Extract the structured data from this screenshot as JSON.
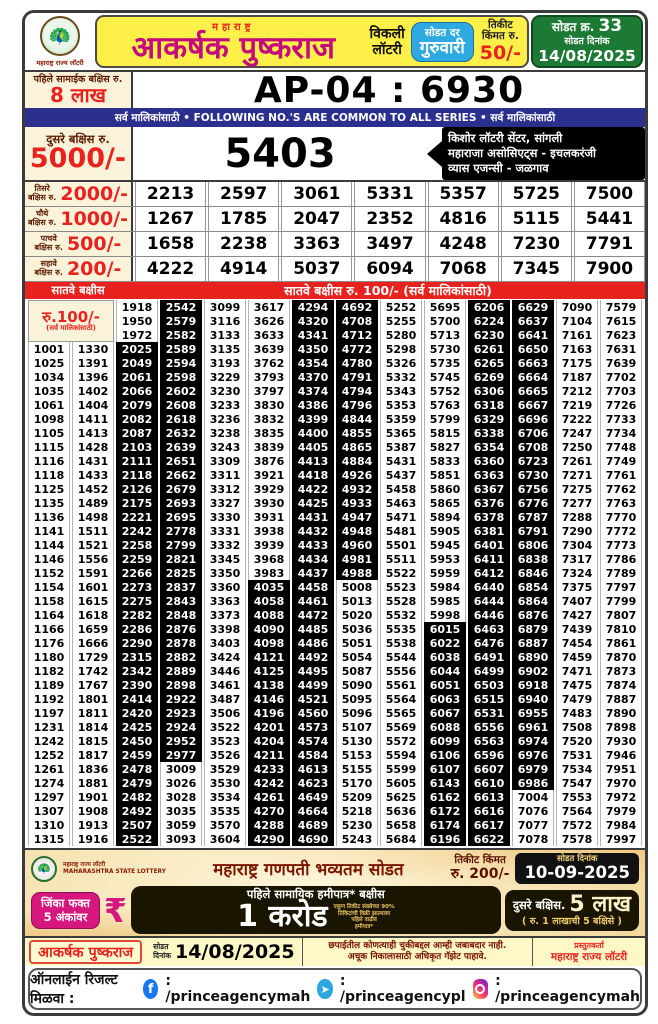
{
  "header": {
    "logo_caption": "महाराष्ट्र राज्य लॉटरी",
    "title_small": "महाराष्ट्र",
    "title": "आकर्षक पुष्कराज",
    "weekly_line1": "विकली",
    "weekly_line2": "लॉटरी",
    "draw_day_label": "सोडत दर",
    "draw_day": "गुरुवारी",
    "ticket_price_label_line1": "तिकीट",
    "ticket_price_label_line2": "किंमत रु.",
    "ticket_price": "50/-",
    "draw_no_label": "सोडत क्र.",
    "draw_no": "33",
    "draw_date_label": "सोडत दिनांक",
    "draw_date": "14/08/2025"
  },
  "first_prize": {
    "label": "पहिले सामाईक बक्षिस रु.",
    "amount": "8 लाख",
    "number": "AP-04 : 6930"
  },
  "common_bar": "सर्व मालिकांसाठी  •  FOLLOWING NO.'S ARE COMMON TO ALL SERIES  •  सर्व मालिकांसाठी",
  "second_prize": {
    "label": "दुसरे बक्षिस रु.",
    "amount": "5000/-",
    "number": "5403",
    "agents": [
      "किशोर लॉटरी सेंटर, सांगली",
      "महाराजा असोसिएट्स - इचलकरंजी",
      "व्यास एजन्सी - जळगाव"
    ]
  },
  "prize_rows": [
    {
      "label_line1": "तिसरे",
      "label_line2": "बक्षिस रु.",
      "amount": "2000/-",
      "numbers": [
        2213,
        2597,
        3061,
        5331,
        5357,
        5725,
        7500
      ]
    },
    {
      "label_line1": "चौथे",
      "label_line2": "बक्षिस रु.",
      "amount": "1000/-",
      "numbers": [
        1267,
        1785,
        2047,
        2352,
        4816,
        5115,
        5441
      ]
    },
    {
      "label_line1": "पाचवे",
      "label_line2": "बक्षिस रु.",
      "amount": "500/-",
      "numbers": [
        1658,
        2238,
        3363,
        3497,
        4248,
        7230,
        7791
      ]
    },
    {
      "label_line1": "सहावे",
      "label_line2": "बक्षिस रु.",
      "amount": "200/-",
      "numbers": [
        4222,
        4914,
        5037,
        6094,
        7068,
        7345,
        7900
      ]
    }
  ],
  "seventh": {
    "bar_left": "सातवे बक्षीस",
    "bar_center": "सातवे बक्षीस रु. 100/-  (सर्व मालिकांसाठी)",
    "label_amount": "रु.100/-",
    "label_note": "(सर्व मालिकांसाठी)",
    "head_rows": [
      [
        1918,
        2542,
        3099,
        3617,
        4294,
        4692,
        5252,
        5695,
        6206,
        6629,
        7090,
        7579
      ],
      [
        1950,
        2579,
        3116,
        3626,
        4320,
        4708,
        5255,
        5700,
        6224,
        6637,
        7104,
        7615
      ],
      [
        1972,
        2582,
        3133,
        3633,
        4341,
        4712,
        5280,
        5713,
        6230,
        6641,
        7161,
        7623
      ]
    ],
    "body_rows": [
      [
        1001,
        1330,
        2025,
        2589,
        3135,
        3639,
        4350,
        4772,
        5298,
        5730,
        6261,
        6650,
        7163,
        7631
      ],
      [
        1025,
        1391,
        2049,
        2594,
        3193,
        3762,
        4354,
        4780,
        5326,
        5735,
        6265,
        6663,
        7175,
        7639
      ],
      [
        1034,
        1396,
        2061,
        2598,
        3229,
        3793,
        4370,
        4791,
        5332,
        5745,
        6269,
        6664,
        7187,
        7702
      ],
      [
        1035,
        1402,
        2066,
        2602,
        3230,
        3797,
        4374,
        4794,
        5343,
        5752,
        6306,
        6665,
        7212,
        7703
      ],
      [
        1061,
        1404,
        2079,
        2608,
        3233,
        3830,
        4386,
        4796,
        5353,
        5763,
        6318,
        6667,
        7219,
        7726
      ],
      [
        1098,
        1411,
        2082,
        2618,
        3236,
        3832,
        4399,
        4844,
        5359,
        5799,
        6329,
        6696,
        7222,
        7733
      ],
      [
        1105,
        1413,
        2087,
        2632,
        3238,
        3835,
        4400,
        4855,
        5365,
        5815,
        6338,
        6706,
        7247,
        7734
      ],
      [
        1115,
        1428,
        2103,
        2639,
        3243,
        3839,
        4405,
        4865,
        5387,
        5827,
        6354,
        6708,
        7250,
        7748
      ],
      [
        1116,
        1431,
        2111,
        2651,
        3309,
        3876,
        4413,
        4884,
        5431,
        5833,
        6360,
        6723,
        7261,
        7749
      ],
      [
        1118,
        1433,
        2118,
        2662,
        3311,
        3921,
        4418,
        4926,
        5437,
        5851,
        6363,
        6730,
        7271,
        7761
      ],
      [
        1125,
        1452,
        2126,
        2679,
        3312,
        3929,
        4422,
        4932,
        5458,
        5860,
        6367,
        6756,
        7275,
        7762
      ],
      [
        1135,
        1489,
        2175,
        2693,
        3327,
        3930,
        4425,
        4933,
        5463,
        5865,
        6376,
        6776,
        7277,
        7763
      ],
      [
        1136,
        1498,
        2221,
        2695,
        3330,
        3931,
        4431,
        4947,
        5471,
        5894,
        6378,
        6787,
        7288,
        7770
      ],
      [
        1141,
        1511,
        2242,
        2778,
        3331,
        3938,
        4432,
        4948,
        5481,
        5905,
        6381,
        6791,
        7290,
        7772
      ],
      [
        1144,
        1521,
        2258,
        2799,
        3332,
        3939,
        4433,
        4960,
        5501,
        5945,
        6401,
        6806,
        7304,
        7773
      ],
      [
        1146,
        1556,
        2259,
        2821,
        3345,
        3968,
        4434,
        4981,
        5511,
        5953,
        6411,
        6838,
        7317,
        7786
      ],
      [
        1152,
        1591,
        2266,
        2825,
        3350,
        3983,
        4437,
        4988,
        5522,
        5959,
        6412,
        6846,
        7324,
        7789
      ],
      [
        1154,
        1601,
        2273,
        2837,
        3360,
        4035,
        4458,
        5008,
        5523,
        5984,
        6440,
        6854,
        7375,
        7797
      ],
      [
        1158,
        1615,
        2275,
        2843,
        3363,
        4058,
        4461,
        5013,
        5528,
        5985,
        6444,
        6864,
        7407,
        7799
      ],
      [
        1164,
        1618,
        2282,
        2848,
        3373,
        4088,
        4472,
        5020,
        5532,
        5998,
        6446,
        6876,
        7427,
        7807
      ],
      [
        1166,
        1659,
        2286,
        2876,
        3398,
        4090,
        4485,
        5036,
        5535,
        6015,
        6463,
        6879,
        7439,
        7810
      ],
      [
        1176,
        1666,
        2290,
        2878,
        3403,
        4098,
        4486,
        5051,
        5538,
        6022,
        6476,
        6887,
        7454,
        7861
      ],
      [
        1180,
        1729,
        2315,
        2882,
        3424,
        4121,
        4492,
        5054,
        5544,
        6038,
        6491,
        6890,
        7459,
        7870
      ],
      [
        1182,
        1742,
        2342,
        2889,
        3446,
        4125,
        4495,
        5087,
        5556,
        6044,
        6499,
        6902,
        7471,
        7873
      ],
      [
        1189,
        1767,
        2390,
        2898,
        3461,
        4138,
        4499,
        5090,
        5561,
        6051,
        6503,
        6918,
        7475,
        7874
      ],
      [
        1192,
        1801,
        2414,
        2922,
        3487,
        4146,
        4521,
        5095,
        5564,
        6063,
        6515,
        6940,
        7479,
        7887
      ],
      [
        1197,
        1811,
        2420,
        2923,
        3506,
        4196,
        4560,
        5096,
        5565,
        6067,
        6531,
        6955,
        7483,
        7890
      ],
      [
        1231,
        1814,
        2425,
        2924,
        3522,
        4201,
        4573,
        5107,
        5569,
        6088,
        6556,
        6961,
        7508,
        7898
      ],
      [
        1242,
        1815,
        2450,
        2952,
        3523,
        4204,
        4574,
        5130,
        5572,
        6099,
        6563,
        6974,
        7520,
        7930
      ],
      [
        1252,
        1817,
        2459,
        2977,
        3526,
        4211,
        4584,
        5153,
        5594,
        6106,
        6596,
        6976,
        7531,
        7946
      ],
      [
        1261,
        1836,
        2478,
        3009,
        3529,
        4233,
        4613,
        5155,
        5599,
        6107,
        6607,
        6979,
        7534,
        7951
      ],
      [
        1274,
        1881,
        2479,
        3026,
        3530,
        4242,
        4623,
        5170,
        5605,
        6143,
        6610,
        6986,
        7547,
        7970
      ],
      [
        1297,
        1901,
        2482,
        3028,
        3534,
        4261,
        4649,
        5209,
        5625,
        6162,
        6613,
        7004,
        7553,
        7972
      ],
      [
        1307,
        1908,
        2492,
        3035,
        3535,
        4270,
        4664,
        5218,
        5636,
        6172,
        6616,
        7076,
        7564,
        7979
      ],
      [
        1310,
        1913,
        2507,
        3059,
        3570,
        4288,
        4689,
        5230,
        5658,
        6174,
        6617,
        7077,
        7572,
        7984
      ],
      [
        1315,
        1916,
        2522,
        3093,
        3604,
        4290,
        4690,
        5243,
        5684,
        6196,
        6622,
        7078,
        7578,
        7997
      ]
    ]
  },
  "promo": {
    "logo_caption_line1": "महाराष्ट्र राज्य लॉटरी",
    "logo_caption_line2": "MAHARASHTRA STATE LOTTERY",
    "title": "महाराष्ट्र गणपती भव्यतम सोडत",
    "ticket_price_label": "तिकीट किंमत",
    "ticket_price": "रु. 200/-",
    "draw_date_label": "सोडत दिनांक",
    "draw_date": "10-09-2025",
    "win_label_line1": "जिंका फक्त",
    "win_label_line2": "5 अंकांवर",
    "rupee": "₹",
    "first_prize_label": "पहिले सामायिक हमीपात्र* बक्षीस",
    "big_amount": "1 करोड",
    "note": [
      "एकूण तिकीट संख्येच्या 90%",
      "तिकिटांची विक्री झाल्यावर",
      "पहिले वाढीव",
      "हमीपात्र*"
    ],
    "second_prize_label": "दुसरे बक्षिस.",
    "second_prize_amount": "5 लाख",
    "second_prize_note": "( रु. 1 लाखाची 5 बक्षिसे )"
  },
  "footer": {
    "name": "आकर्षक पुष्कराज",
    "draw_date_label_line1": "सोडत",
    "draw_date_label_line2": "दिनांक",
    "draw_date": "14/08/2025",
    "disclaimer_line1": "छपाईतील कोणत्याही चुकीबद्दल आम्ही जबाबदार नाही.",
    "disclaimer_line2": "अचूक निकालासाठी अधिकृत गॅझेट पाहावे.",
    "presenter_label": "प्रस्तुतकर्ता",
    "presenter": "महाराष्ट्र राज्य लॉटरी",
    "online_label": "ऑनलाईन रिजल्ट मिळवा :",
    "facebook_handle": ": /princeagencymah",
    "telegram_handle": ": /princeagencypl",
    "instagram_handle": ": /princeagencymah"
  },
  "colors": {
    "title_magenta": "#c40a7e",
    "red": "#e8231f",
    "navy": "#2b2f8e",
    "green": "#1d7a34",
    "blue": "#2fa9e2",
    "yellow": "#ffef49",
    "cream": "#fbf3d9"
  }
}
